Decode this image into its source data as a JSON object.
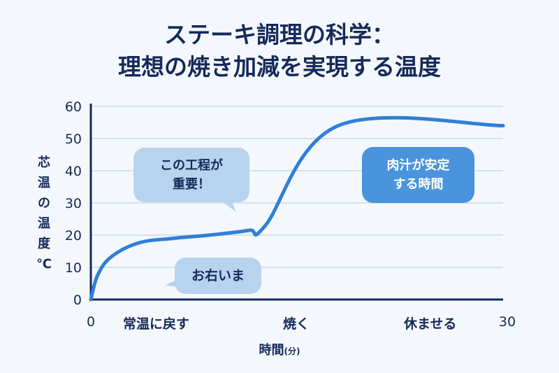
{
  "title_line1": "ステーキ調理の科学：",
  "title_line2": "理想の焼き加減を実現する温度",
  "colors": {
    "line": "#2f7fd6",
    "axis": "#16295a",
    "grid": "#c9d9ea",
    "bubble_light": "#b7d3ee",
    "bubble_dark": "#4a94de"
  },
  "chart_data": {
    "type": "line",
    "title": "ステーキ調理の科学：理想の焼き加減を実現する温度",
    "ylabel": "芯温の温度 ℃",
    "xlabel": "時間",
    "xlabel_unit": "(分)",
    "xlim": [
      0,
      30
    ],
    "ylim": [
      0,
      60
    ],
    "x_ticks": [
      "0",
      "30"
    ],
    "y_ticks": [
      "0",
      "10",
      "20",
      "30",
      "40",
      "50",
      "60"
    ],
    "grid": true,
    "series": [
      {
        "points": [
          [
            0,
            0
          ],
          [
            0.5,
            7.6
          ],
          [
            1.5,
            13.3
          ],
          [
            3.5,
            17.6
          ],
          [
            6,
            19
          ],
          [
            8.6,
            20
          ],
          [
            11.5,
            21.5
          ],
          [
            12.7,
            23
          ],
          [
            18,
            54
          ],
          [
            30,
            54
          ]
        ]
      }
    ],
    "phases": [
      "常温に戻す",
      "焼く",
      "休ませる"
    ],
    "annotations": [
      {
        "line1": "この工程が",
        "line2": "重要！"
      },
      {
        "text": "お右いま"
      },
      {
        "line1": "肉汁が安定",
        "line2": "する時間"
      }
    ]
  }
}
